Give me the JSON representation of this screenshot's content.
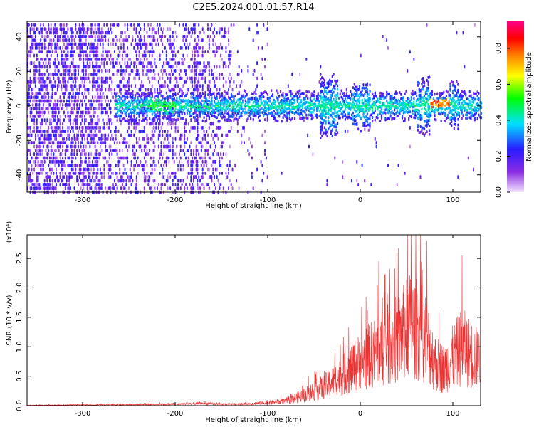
{
  "title": "C2E5.2024.001.01.57.R14",
  "colors": {
    "snr_line": "#ee3333",
    "axis": "#000000",
    "background": "#ffffff"
  },
  "chart_data": [
    {
      "type": "heatmap",
      "name": "spectrogram",
      "xlabel": "Height of straight line (km)",
      "ylabel": "Frequency (Hz)",
      "xlim": [
        -360,
        130
      ],
      "ylim": [
        -50,
        49
      ],
      "xticks": [
        "-300",
        "-200",
        "-100",
        "0",
        "100"
      ],
      "yticks": [
        "-40",
        "-20",
        "0",
        "20",
        "40"
      ],
      "colorbar": {
        "label": "Normalized spectral amplitude",
        "range": [
          0,
          0.95
        ],
        "ticks": [
          "0.0",
          "0.2",
          "0.4",
          "0.6",
          "0.8"
        ],
        "colormap": "rainbow (light violet - violet - blue - cyan - green - yellow - red - magenta)"
      },
      "description_regions": [
        {
          "x_range": [
            -360,
            -150
          ],
          "freq_range": [
            -50,
            49
          ],
          "amplitude": "low, scattered broadband"
        },
        {
          "x_range": [
            -265,
            130
          ],
          "freq_range": [
            -10,
            10
          ],
          "amplitude": "moderate band centered at 0 Hz"
        },
        {
          "x_range": [
            75,
            95
          ],
          "freq_range": [
            -2,
            4
          ],
          "amplitude": "high (yellow-red)"
        }
      ]
    },
    {
      "type": "line",
      "name": "snr",
      "xlabel": "Height of straight line (km)",
      "ylabel": "SNR (10 * v/v)",
      "y_multiplier": "(x10⁴)",
      "xlim": [
        -360,
        130
      ],
      "ylim": [
        0,
        2.9
      ],
      "xticks": [
        "-300",
        "-200",
        "-100",
        "0",
        "100"
      ],
      "yticks": [
        "0.0",
        "0.5",
        "1.0",
        "1.5",
        "2.0",
        "2.5"
      ],
      "envelope_x": [
        -360,
        -300,
        -250,
        -200,
        -170,
        -150,
        -120,
        -100,
        -80,
        -60,
        -40,
        -20,
        0,
        20,
        40,
        55,
        70,
        80,
        90,
        100,
        110,
        120,
        130
      ],
      "envelope_y": [
        0.01,
        0.02,
        0.03,
        0.04,
        0.06,
        0.04,
        0.05,
        0.08,
        0.12,
        0.3,
        0.5,
        0.8,
        1.2,
        1.5,
        1.8,
        2.2,
        1.9,
        1.2,
        1.0,
        1.3,
        1.6,
        1.4,
        1.2
      ],
      "peaks": [
        {
          "x": 55,
          "y": 2.9
        },
        {
          "x": 60,
          "y": 2.9
        },
        {
          "x": 20,
          "y": 2.45
        },
        {
          "x": 72,
          "y": 2.8
        },
        {
          "x": 110,
          "y": 2.55
        }
      ]
    }
  ]
}
